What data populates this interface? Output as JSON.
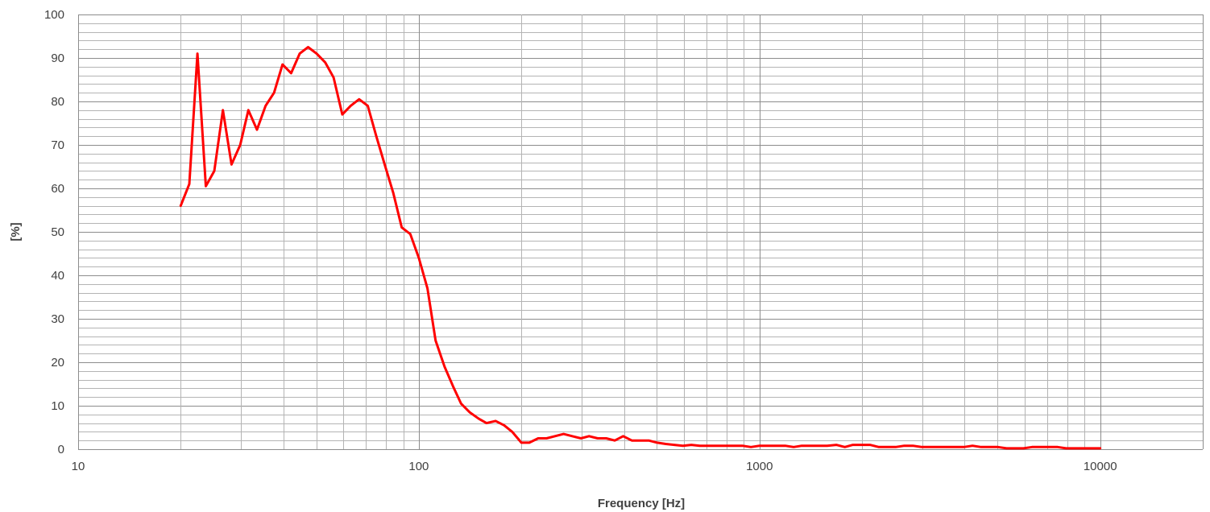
{
  "chart_data": {
    "type": "line",
    "title": "",
    "xlabel": "Frequency [Hz]",
    "ylabel": "[%]",
    "x_scale": "log",
    "xlim": [
      10,
      20000
    ],
    "ylim": [
      0,
      100
    ],
    "x_ticks": [
      10,
      100,
      1000,
      10000
    ],
    "x_tick_labels": [
      "10",
      "100",
      "1000",
      "10000"
    ],
    "y_ticks": [
      0,
      10,
      20,
      30,
      40,
      50,
      60,
      70,
      80,
      90,
      100
    ],
    "y_tick_labels": [
      "0",
      "10",
      "20",
      "30",
      "40",
      "50",
      "60",
      "70",
      "80",
      "90",
      "100"
    ],
    "grid": true,
    "legend": "none",
    "line_color": "#ff0000",
    "series": [
      {
        "x": [
          20,
          21.2,
          22.4,
          23.7,
          25.1,
          26.6,
          28.2,
          29.9,
          31.6,
          33.5,
          35.5,
          37.6,
          39.8,
          42.2,
          44.7,
          47.3,
          50.1,
          53.1,
          56.2,
          59.6,
          63.1,
          66.8,
          70.8,
          75,
          79.4,
          84.1,
          89.1,
          94.4,
          100,
          106,
          112,
          119,
          126,
          133,
          141,
          150,
          158,
          168,
          178,
          188,
          200,
          211,
          224,
          237,
          251,
          266,
          282,
          299,
          316,
          335,
          355,
          376,
          398,
          422,
          447,
          473,
          501,
          531,
          562,
          596,
          631,
          668,
          708,
          750,
          794,
          841,
          891,
          944,
          1000,
          1060,
          1120,
          1190,
          1260,
          1330,
          1410,
          1500,
          1580,
          1680,
          1780,
          1880,
          2000,
          2110,
          2240,
          2370,
          2510,
          2660,
          2820,
          2990,
          3160,
          3350,
          3550,
          3760,
          3980,
          4220,
          4470,
          4730,
          5010,
          5310,
          5620,
          5960,
          6310,
          6680,
          7080,
          7500,
          7940,
          8410,
          8910,
          9440,
          10000
        ],
        "y": [
          56,
          61,
          91,
          60.5,
          64,
          78,
          65.5,
          70,
          78,
          73.5,
          79,
          82,
          88.5,
          86.5,
          91,
          92.5,
          91,
          89,
          85.5,
          77,
          79,
          80.5,
          79,
          72,
          65.5,
          59,
          51,
          49.5,
          44,
          37,
          25,
          19,
          14.5,
          10.5,
          8.5,
          7,
          6,
          6.5,
          5.5,
          4,
          1.5,
          1.5,
          2.5,
          2.5,
          3,
          3.5,
          3,
          2.5,
          3,
          2.5,
          2.5,
          2,
          3,
          2,
          2,
          2,
          1.5,
          1.2,
          1,
          0.8,
          1,
          0.8,
          0.8,
          0.8,
          0.8,
          0.8,
          0.8,
          0.5,
          0.8,
          0.8,
          0.8,
          0.8,
          0.5,
          0.8,
          0.8,
          0.8,
          0.8,
          1,
          0.5,
          1,
          1,
          1,
          0.5,
          0.5,
          0.5,
          0.8,
          0.8,
          0.5,
          0.5,
          0.5,
          0.5,
          0.5,
          0.5,
          0.8,
          0.5,
          0.5,
          0.5,
          0.2,
          0.2,
          0.2,
          0.5,
          0.5,
          0.5,
          0.5,
          0.2,
          0.2,
          0.2,
          0.2,
          0.2
        ]
      }
    ]
  }
}
